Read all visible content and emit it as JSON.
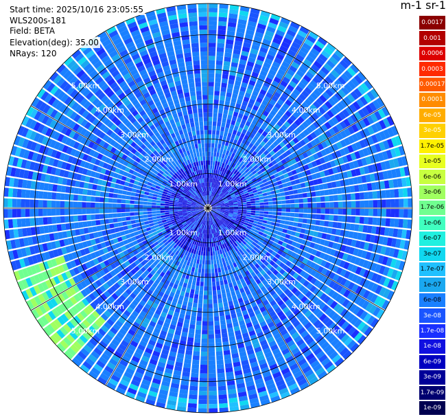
{
  "info": {
    "start_time": "Start time: 2025/10/16 23:05:55",
    "instrument": "WLS200s-181",
    "field": "Field: BETA",
    "elevation": "Elevation(deg): 35.00",
    "nrays": "NRays: 120"
  },
  "colorbar": {
    "title": "m-1 sr-1",
    "ticks": [
      "0.0017",
      "0.001",
      "0.0006",
      "0.0003",
      "0.00017",
      "0.0001",
      "6e-05",
      "3e-05",
      "1.7e-05",
      "1e-05",
      "6e-06",
      "3e-06",
      "1.7e-06",
      "1e-06",
      "6e-07",
      "3e-07",
      "1.7e-07",
      "1e-07",
      "6e-08",
      "3e-08",
      "1.7e-08",
      "1e-08",
      "6e-09",
      "3e-09",
      "1.7e-09",
      "1e-09"
    ],
    "colors": [
      "#8b0000",
      "#b20000",
      "#dd0000",
      "#ff2a00",
      "#ff5a00",
      "#ff8c00",
      "#ffad00",
      "#ffd000",
      "#fff000",
      "#e8ff20",
      "#c8ff40",
      "#a0ff60",
      "#70ff90",
      "#40ffc0",
      "#20f0e0",
      "#10d8f0",
      "#20c0ff",
      "#1aa8f0",
      "#1a80ff",
      "#1a55ff",
      "#1a30ff",
      "#1010e0",
      "#0000c0",
      "#000098",
      "#000070",
      "#000050"
    ]
  },
  "chart_data": {
    "type": "heatmap",
    "projection": "polar (PPI scan)",
    "field": "BETA",
    "elevation_deg": 35.0,
    "n_rays": 120,
    "range_rings_km": [
      1.0,
      2.0,
      3.0,
      4.0,
      5.0
    ],
    "ring_labels": [
      "1.00km",
      "2.00km",
      "3.00km",
      "4.00km",
      "5.00km"
    ],
    "max_range_km": 5.9,
    "background_level": "6e-08",
    "near_range_level": "1e-08",
    "high_region": {
      "azimuth_deg_from": 220,
      "azimuth_deg_to": 250,
      "range_km_from": 4.3,
      "range_km_to": 5.9,
      "level": "1.7e-06"
    },
    "edge_levels": [
      "3e-07",
      "1.7e-07"
    ]
  }
}
